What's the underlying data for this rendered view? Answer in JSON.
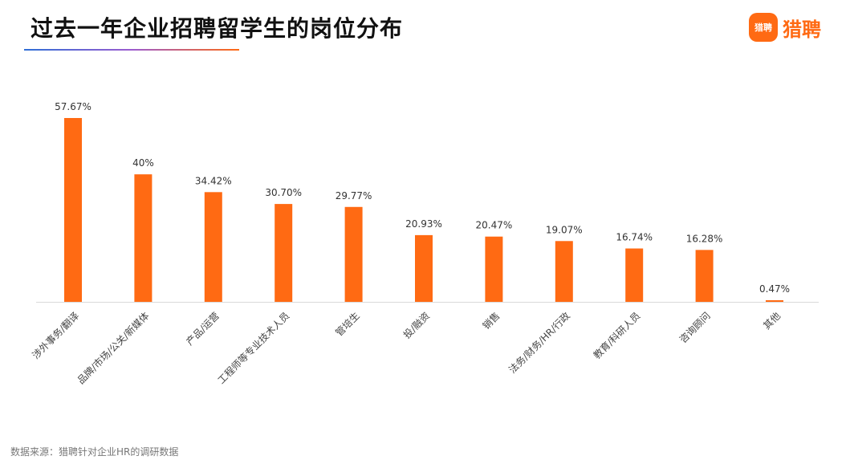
{
  "header": {
    "title": "过去一年企业招聘留学生的岗位分布",
    "logo_mark": "猎聘",
    "logo_text": "猎聘"
  },
  "footer": {
    "source": "数据来源：猎聘针对企业HR的调研数据"
  },
  "colors": {
    "bar": "#ff6a13",
    "accent_blue": "#2f6fd6"
  },
  "chart_data": {
    "type": "bar",
    "title": "过去一年企业招聘留学生的岗位分布",
    "xlabel": "",
    "ylabel": "",
    "categories": [
      "涉外事务/翻译",
      "品牌/市场/公关/新媒体",
      "产品/运营",
      "工程师等专业技术人员",
      "管培生",
      "投/融资",
      "销售",
      "法务/财务/HR/行政",
      "教育/科研人员",
      "咨询顾问",
      "其他"
    ],
    "values": [
      57.67,
      40,
      34.42,
      30.7,
      29.77,
      20.93,
      20.47,
      19.07,
      16.74,
      16.28,
      0.47
    ],
    "value_labels": [
      "57.67%",
      "40%",
      "34.42%",
      "30.70%",
      "29.77%",
      "20.93%",
      "20.47%",
      "19.07%",
      "16.74%",
      "16.28%",
      "0.47%"
    ],
    "ylim": [
      0,
      57.67
    ],
    "grid": false,
    "legend": "none"
  }
}
